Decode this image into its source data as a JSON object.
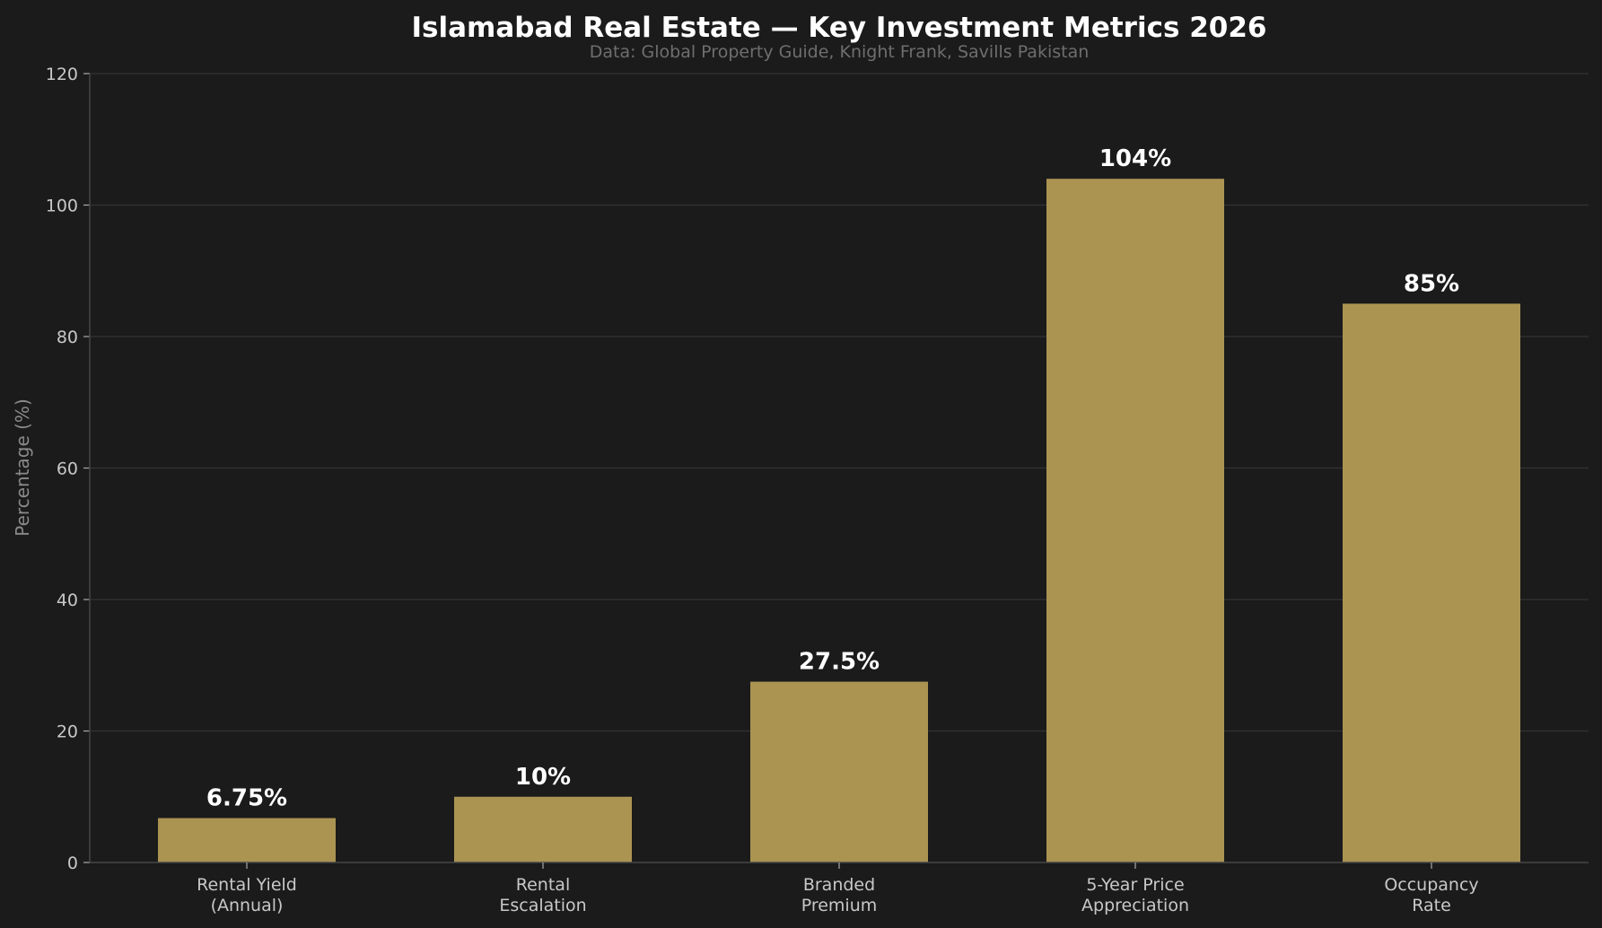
{
  "chart_data": {
    "type": "bar",
    "title": "Islamabad Real Estate — Key Investment Metrics 2026",
    "subtitle": "Data: Global Property Guide, Knight Frank, Savills Pakistan",
    "xlabel": "",
    "ylabel": "Percentage (%)",
    "ylim": [
      0,
      120
    ],
    "yticks": [
      0,
      20,
      40,
      60,
      80,
      100,
      120
    ],
    "grid": true,
    "categories": [
      [
        "Rental Yield",
        "(Annual)"
      ],
      [
        "Rental",
        "Escalation"
      ],
      [
        "Branded",
        "Premium"
      ],
      [
        "5-Year Price",
        "Appreciation"
      ],
      [
        "Occupancy",
        "Rate"
      ]
    ],
    "values": [
      6.75,
      10,
      27.5,
      104,
      85
    ],
    "data_labels": [
      "6.75%",
      "10%",
      "27.5%",
      "104%",
      "85%"
    ],
    "colors": {
      "bar": "#ab9452",
      "background": "#1b1b1b",
      "grid": "#333333"
    }
  }
}
